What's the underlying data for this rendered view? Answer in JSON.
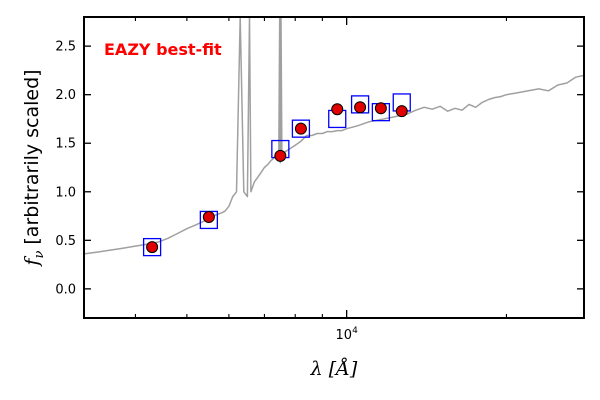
{
  "chart_data": {
    "type": "line",
    "title": "",
    "xlabel": "λ [Å]",
    "ylabel": "f_ν [arbitrarily scaled]",
    "xscale": "log",
    "xlim": [
      3200,
      28000
    ],
    "ylim": [
      -0.3,
      2.8
    ],
    "grid": false,
    "yticks": [
      0.0,
      0.5,
      1.0,
      1.5,
      2.0,
      2.5
    ],
    "ytick_labels": [
      "0.0",
      "0.5",
      "1.0",
      "1.5",
      "2.0",
      "2.5"
    ],
    "xtick_major": [
      10000
    ],
    "xtick_major_labels": [
      "10^4"
    ],
    "xtick_minor": [
      4000,
      5000,
      6000,
      7000,
      8000,
      9000,
      20000
    ],
    "annotation": {
      "text": "EAZY best-fit",
      "color": "#ff0000",
      "position": "top-left"
    },
    "colors": {
      "sed_line": "#a0a0a0",
      "model_box": "#0000ff",
      "observed_point": "#e00000",
      "point_edge": "#000000"
    },
    "series": [
      {
        "role": "best-fit SED",
        "style": "line",
        "x": [
          3200,
          3400,
          3600,
          3800,
          4000,
          4200,
          4400,
          4600,
          4800,
          5000,
          5200,
          5400,
          5600,
          5800,
          5900,
          6000,
          6100,
          6200,
          6300,
          6400,
          6500,
          6560,
          6600,
          6700,
          6800,
          6900,
          7000,
          7100,
          7200,
          7300,
          7400,
          7450,
          7480,
          7500,
          7520,
          7550,
          7600,
          7700,
          7800,
          7900,
          8000,
          8100,
          8200,
          8300,
          8400,
          8600,
          8800,
          9000,
          9200,
          9400,
          9600,
          9800,
          10000,
          10500,
          11000,
          11500,
          12000,
          12500,
          13000,
          13500,
          14000,
          14500,
          15000,
          15500,
          16000,
          16500,
          17000,
          17500,
          18000,
          18500,
          19000,
          19500,
          20000,
          21000,
          22000,
          23000,
          24000,
          25000,
          26000,
          27000,
          28000
        ],
        "y": [
          0.36,
          0.38,
          0.4,
          0.42,
          0.44,
          0.46,
          0.48,
          0.52,
          0.57,
          0.62,
          0.66,
          0.7,
          0.75,
          0.78,
          0.8,
          0.85,
          0.95,
          1.0,
          2.8,
          1.0,
          0.95,
          2.8,
          1.0,
          1.1,
          1.15,
          1.2,
          1.25,
          1.28,
          1.32,
          1.35,
          1.4,
          1.4,
          2.8,
          1.3,
          2.8,
          1.35,
          1.4,
          1.42,
          1.44,
          1.46,
          1.48,
          1.5,
          1.52,
          1.55,
          1.58,
          1.58,
          1.6,
          1.6,
          1.62,
          1.62,
          1.63,
          1.63,
          1.65,
          1.68,
          1.72,
          1.74,
          1.76,
          1.78,
          1.8,
          1.84,
          1.87,
          1.85,
          1.88,
          1.83,
          1.86,
          1.84,
          1.9,
          1.87,
          1.92,
          1.95,
          1.97,
          1.98,
          2.0,
          2.02,
          2.04,
          2.06,
          2.04,
          2.1,
          2.12,
          2.18,
          2.2
        ]
      },
      {
        "role": "model photometry",
        "style": "open-square",
        "x": [
          4300,
          5500,
          7500,
          8200,
          9600,
          10600,
          11600,
          12700
        ],
        "y": [
          0.43,
          0.71,
          1.44,
          1.65,
          1.75,
          1.9,
          1.82,
          1.92
        ]
      },
      {
        "role": "observed photometry",
        "style": "circle",
        "x": [
          4300,
          5500,
          7500,
          8200,
          9600,
          10600,
          11600,
          12700
        ],
        "y": [
          0.43,
          0.74,
          1.37,
          1.65,
          1.85,
          1.87,
          1.86,
          1.83
        ],
        "yerr": [
          0.02,
          0.02,
          0.02,
          0.03,
          0.04,
          0.05,
          0.05,
          0.03
        ]
      }
    ]
  }
}
